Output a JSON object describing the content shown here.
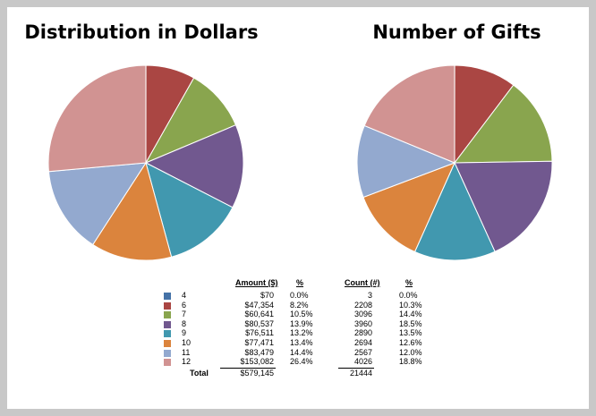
{
  "chart_data": [
    {
      "type": "pie",
      "title": "Distribution in Dollars",
      "categories": [
        "4",
        "6",
        "7",
        "8",
        "9",
        "10",
        "11",
        "12"
      ],
      "values": [
        70,
        47354,
        60641,
        80537,
        76511,
        77471,
        83479,
        153082
      ]
    },
    {
      "type": "pie",
      "title": "Number of Gifts",
      "categories": [
        "4",
        "6",
        "7",
        "8",
        "9",
        "10",
        "11",
        "12"
      ],
      "values": [
        3,
        2208,
        3096,
        3960,
        2890,
        2694,
        2567,
        4026
      ]
    }
  ],
  "colors": [
    "#4572a7",
    "#aa4643",
    "#89a54e",
    "#71588f",
    "#4198af",
    "#db843d",
    "#93a9cf",
    "#d19392"
  ],
  "table": {
    "headers": {
      "amount": "Amount ($)",
      "amount_pct": "%",
      "count": "Count (#)",
      "count_pct": "%"
    },
    "rows": [
      {
        "label": "4",
        "amount": "$70",
        "amount_pct": "0.0%",
        "count": "3",
        "count_pct": "0.0%"
      },
      {
        "label": "6",
        "amount": "$47,354",
        "amount_pct": "8.2%",
        "count": "2208",
        "count_pct": "10.3%"
      },
      {
        "label": "7",
        "amount": "$60,641",
        "amount_pct": "10.5%",
        "count": "3096",
        "count_pct": "14.4%"
      },
      {
        "label": "8",
        "amount": "$80,537",
        "amount_pct": "13.9%",
        "count": "3960",
        "count_pct": "18.5%"
      },
      {
        "label": "9",
        "amount": "$76,511",
        "amount_pct": "13.2%",
        "count": "2890",
        "count_pct": "13.5%"
      },
      {
        "label": "10",
        "amount": "$77,471",
        "amount_pct": "13.4%",
        "count": "2694",
        "count_pct": "12.6%"
      },
      {
        "label": "11",
        "amount": "$83,479",
        "amount_pct": "14.4%",
        "count": "2567",
        "count_pct": "12.0%"
      },
      {
        "label": "12",
        "amount": "$153,082",
        "amount_pct": "26.4%",
        "count": "4026",
        "count_pct": "18.8%"
      }
    ],
    "total": {
      "label": "Total",
      "amount": "$579,145",
      "count": "21444"
    }
  }
}
